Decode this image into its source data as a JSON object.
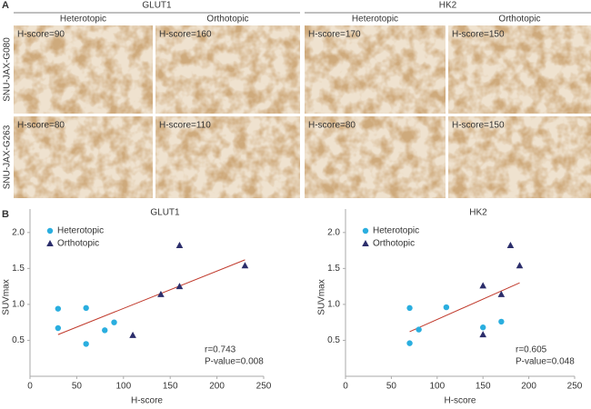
{
  "panel_a": {
    "label": "A",
    "groups": [
      {
        "title": "GLUT1",
        "columns": [
          "Heterotopic",
          "Orthotopic"
        ]
      },
      {
        "title": "HK2",
        "columns": [
          "Heterotopic",
          "Orthotopic"
        ]
      }
    ],
    "rows": [
      {
        "label": "SNU-JAX-G080",
        "scores": [
          "H-score=90",
          "H-score=160",
          "H-score=170",
          "H-score=150"
        ]
      },
      {
        "label": "SNU-JAX-G263",
        "scores": [
          "H-score=80",
          "H-score=110",
          "H-score=80",
          "H-score=150"
        ]
      }
    ]
  },
  "panel_b": {
    "label": "B"
  },
  "chart_data": [
    {
      "type": "scatter",
      "title": "GLUT1",
      "xlabel": "H-score",
      "ylabel": "SUVmax",
      "xlim": [
        0,
        250
      ],
      "ylim": [
        0,
        2.2
      ],
      "xticks": [
        0,
        50,
        100,
        150,
        200,
        250
      ],
      "yticks": [
        0.5,
        {
          "value": 1,
          "label": "1.0"
        },
        1.5,
        {
          "value": 2,
          "label": "2.0"
        }
      ],
      "legend": "upper left",
      "series": [
        {
          "name": "Heterotopic",
          "color": "#2aaedf",
          "marker": "circle",
          "x": [
            30,
            30,
            60,
            60,
            80,
            90
          ],
          "values": [
            0.94,
            0.67,
            0.95,
            0.45,
            0.64,
            0.75
          ]
        },
        {
          "name": "Orthotopic",
          "color": "#2b2d6b",
          "marker": "triangle",
          "x": [
            110,
            140,
            160,
            160,
            230
          ],
          "values": [
            0.57,
            1.14,
            1.25,
            1.82,
            1.54
          ]
        }
      ],
      "fit": {
        "color": "#c0392b",
        "x": [
          30,
          230
        ],
        "values": [
          0.58,
          1.62
        ]
      },
      "annotations": [
        "r=0.743",
        "P-value=0.008"
      ]
    },
    {
      "type": "scatter",
      "title": "HK2",
      "xlabel": "H-score",
      "ylabel": "SUVmax",
      "xlim": [
        0,
        250
      ],
      "ylim": [
        0,
        2.2
      ],
      "xticks": [
        0,
        50,
        100,
        150,
        200,
        250
      ],
      "yticks": [
        0.5,
        {
          "value": 1,
          "label": "1.0"
        },
        1.5,
        {
          "value": 2,
          "label": "2.0"
        }
      ],
      "legend": "upper left",
      "series": [
        {
          "name": "Heterotopic",
          "color": "#2aaedf",
          "marker": "circle",
          "x": [
            70,
            70,
            80,
            110,
            150,
            170
          ],
          "values": [
            0.95,
            0.46,
            0.65,
            0.96,
            0.68,
            0.76
          ]
        },
        {
          "name": "Orthotopic",
          "color": "#2b2d6b",
          "marker": "triangle",
          "x": [
            150,
            150,
            170,
            180,
            190
          ],
          "values": [
            1.26,
            0.58,
            1.14,
            1.82,
            1.54
          ]
        }
      ],
      "fit": {
        "color": "#c0392b",
        "x": [
          70,
          190
        ],
        "values": [
          0.62,
          1.3
        ]
      },
      "annotations": [
        "r=0.605",
        "P-value=0.048"
      ]
    }
  ]
}
